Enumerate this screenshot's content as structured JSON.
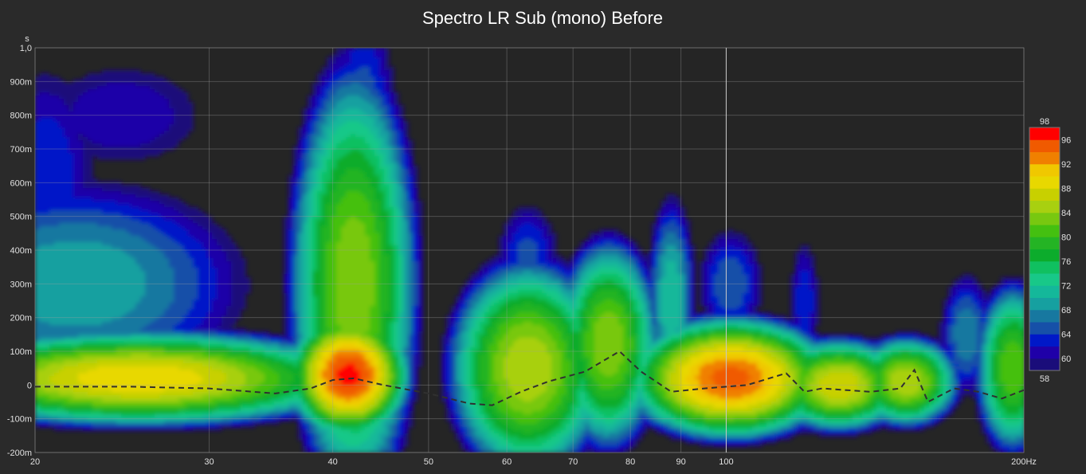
{
  "chart_data": {
    "type": "heatmap",
    "title": "Spectro LR Sub (mono) Before",
    "y_unit_label": "s",
    "x_unit_suffix": "Hz",
    "x_scale": "log",
    "xlim": [
      20,
      200
    ],
    "ylim": [
      -0.2,
      1.0
    ],
    "x_ticks": [
      {
        "value": 20,
        "label": "20"
      },
      {
        "value": 30,
        "label": "30"
      },
      {
        "value": 40,
        "label": "40"
      },
      {
        "value": 50,
        "label": "50"
      },
      {
        "value": 60,
        "label": "60"
      },
      {
        "value": 70,
        "label": "70"
      },
      {
        "value": 80,
        "label": "80"
      },
      {
        "value": 90,
        "label": "90"
      },
      {
        "value": 100,
        "label": "100"
      },
      {
        "value": 200,
        "label": "200Hz"
      }
    ],
    "y_ticks": [
      {
        "value": 1.0,
        "label": "1,0"
      },
      {
        "value": 0.9,
        "label": "900m"
      },
      {
        "value": 0.8,
        "label": "800m"
      },
      {
        "value": 0.7,
        "label": "700m"
      },
      {
        "value": 0.6,
        "label": "600m"
      },
      {
        "value": 0.5,
        "label": "500m"
      },
      {
        "value": 0.4,
        "label": "400m"
      },
      {
        "value": 0.3,
        "label": "300m"
      },
      {
        "value": 0.2,
        "label": "200m"
      },
      {
        "value": 0.1,
        "label": "100m"
      },
      {
        "value": 0.0,
        "label": "0"
      },
      {
        "value": -0.1,
        "label": "-100m"
      },
      {
        "value": -0.2,
        "label": "-200m"
      }
    ],
    "grid": true,
    "cursor_x": 100,
    "color_scale": {
      "min_label": "58",
      "max_label": "98",
      "levels": [
        {
          "from": 58,
          "to": 60,
          "color": "#1a0d7a"
        },
        {
          "from": 60,
          "to": 62,
          "color": "#1f00a8"
        },
        {
          "from": 62,
          "to": 64,
          "color": "#0018c8"
        },
        {
          "from": 64,
          "to": 66,
          "color": "#1650a8"
        },
        {
          "from": 66,
          "to": 68,
          "color": "#1778a0"
        },
        {
          "from": 68,
          "to": 70,
          "color": "#16a0a0"
        },
        {
          "from": 70,
          "to": 72,
          "color": "#14b89a"
        },
        {
          "from": 72,
          "to": 74,
          "color": "#18c888"
        },
        {
          "from": 74,
          "to": 76,
          "color": "#10c060"
        },
        {
          "from": 76,
          "to": 78,
          "color": "#0cac2c"
        },
        {
          "from": 78,
          "to": 80,
          "color": "#24b424"
        },
        {
          "from": 80,
          "to": 82,
          "color": "#44c010"
        },
        {
          "from": 82,
          "to": 84,
          "color": "#78c810"
        },
        {
          "from": 84,
          "to": 86,
          "color": "#a8d010"
        },
        {
          "from": 86,
          "to": 88,
          "color": "#c8d000"
        },
        {
          "from": 88,
          "to": 90,
          "color": "#e8d800"
        },
        {
          "from": 90,
          "to": 92,
          "color": "#f0c800"
        },
        {
          "from": 92,
          "to": 94,
          "color": "#f08000"
        },
        {
          "from": 94,
          "to": 96,
          "color": "#f05a00"
        },
        {
          "from": 96,
          "to": 98,
          "color": "#ff0000"
        }
      ],
      "tick_labels": [
        "96",
        "92",
        "88",
        "84",
        "80",
        "76",
        "72",
        "68",
        "64",
        "60"
      ]
    },
    "peaks": [
      {
        "freq": 20.5,
        "time": 0.62,
        "spread_f": 0.035,
        "spread_t": 0.22,
        "level": 64
      },
      {
        "freq": 24.5,
        "time": 0.8,
        "spread_f": 0.065,
        "spread_t": 0.12,
        "level": 62
      },
      {
        "freq": 22.0,
        "time": 0.3,
        "spread_f": 0.09,
        "spread_t": 0.16,
        "level": 70
      },
      {
        "freq": 25.5,
        "time": 0.02,
        "spread_f": 0.08,
        "spread_t": 0.05,
        "level": 90
      },
      {
        "freq": 41.5,
        "time": 0.03,
        "spread_f": 0.02,
        "spread_t": 0.06,
        "level": 97
      },
      {
        "freq": 42.0,
        "time": 0.3,
        "spread_f": 0.025,
        "spread_t": 0.25,
        "level": 84
      },
      {
        "freq": 43.0,
        "time": 0.75,
        "spread_f": 0.02,
        "spread_t": 0.25,
        "level": 66
      },
      {
        "freq": 63.0,
        "time": 0.05,
        "spread_f": 0.03,
        "spread_t": 0.12,
        "level": 86
      },
      {
        "freq": 63.0,
        "time": 0.38,
        "spread_f": 0.02,
        "spread_t": 0.1,
        "level": 65
      },
      {
        "freq": 76.0,
        "time": 0.12,
        "spread_f": 0.02,
        "spread_t": 0.12,
        "level": 84
      },
      {
        "freq": 88.0,
        "time": 0.25,
        "spread_f": 0.012,
        "spread_t": 0.15,
        "level": 72
      },
      {
        "freq": 101.0,
        "time": 0.02,
        "spread_f": 0.035,
        "spread_t": 0.06,
        "level": 95
      },
      {
        "freq": 101.0,
        "time": 0.3,
        "spread_f": 0.02,
        "spread_t": 0.1,
        "level": 66
      },
      {
        "freq": 120.0,
        "time": 0.25,
        "spread_f": 0.01,
        "spread_t": 0.12,
        "level": 64
      },
      {
        "freq": 130.0,
        "time": 0.0,
        "spread_f": 0.025,
        "spread_t": 0.05,
        "level": 88
      },
      {
        "freq": 152.0,
        "time": 0.01,
        "spread_f": 0.02,
        "spread_t": 0.05,
        "level": 86
      },
      {
        "freq": 175.0,
        "time": 0.15,
        "spread_f": 0.015,
        "spread_t": 0.1,
        "level": 68
      },
      {
        "freq": 195.0,
        "time": 0.05,
        "spread_f": 0.015,
        "spread_t": 0.1,
        "level": 82
      }
    ],
    "group_delay_curve": {
      "x": [
        20,
        25,
        30,
        35,
        38,
        40,
        42,
        45,
        50,
        55,
        58,
        62,
        66,
        72,
        78,
        82,
        88,
        95,
        105,
        115,
        120,
        125,
        140,
        150,
        155,
        160,
        170,
        180,
        190,
        200
      ],
      "y": [
        -0.005,
        -0.005,
        -0.01,
        -0.025,
        -0.01,
        0.015,
        0.02,
        0.0,
        -0.025,
        -0.055,
        -0.06,
        -0.02,
        0.01,
        0.04,
        0.1,
        0.04,
        -0.02,
        -0.01,
        0.0,
        0.035,
        -0.02,
        -0.01,
        -0.02,
        -0.01,
        0.045,
        -0.05,
        -0.01,
        -0.02,
        -0.04,
        -0.015
      ]
    }
  }
}
